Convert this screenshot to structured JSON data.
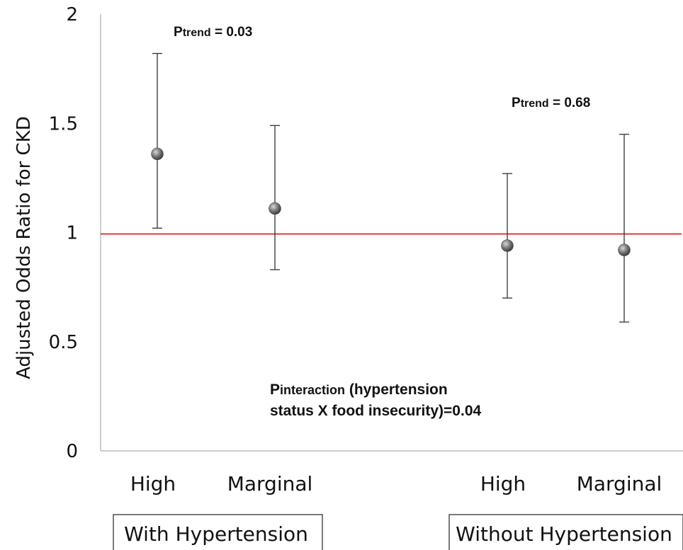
{
  "chart_data": {
    "type": "scatter",
    "ylabel": "Adjusted Odds Ratio for CKD",
    "ylim": [
      0,
      2
    ],
    "yticks": [
      {
        "value": 0,
        "label": "0"
      },
      {
        "value": 0.5,
        "label": "0.5"
      },
      {
        "value": 1,
        "label": "1"
      },
      {
        "value": 1.5,
        "label": "1.5"
      },
      {
        "value": 2,
        "label": "2"
      }
    ],
    "reference_line": {
      "y": 1,
      "color": "#e53935"
    },
    "marker_color": "#6e6e6e",
    "error_bar_color": "#333333",
    "categories": [
      "High",
      "Marginal",
      "High",
      "Marginal"
    ],
    "points": [
      {
        "category": "High",
        "group": "With Hypertension",
        "y": 1.36,
        "lower": 1.02,
        "upper": 1.82
      },
      {
        "category": "Marginal",
        "group": "With Hypertension",
        "y": 1.11,
        "lower": 0.83,
        "upper": 1.49
      },
      {
        "category": "High",
        "group": "Without Hypertension",
        "y": 0.94,
        "lower": 0.7,
        "upper": 1.27
      },
      {
        "category": "Marginal",
        "group": "Without Hypertension",
        "y": 0.92,
        "lower": 0.59,
        "upper": 1.45
      }
    ],
    "groups": [
      "With Hypertension",
      "Without Hypertension"
    ],
    "annotations": [
      {
        "sub_prefix": "P",
        "sub": "trend",
        "text": " = 0.03"
      },
      {
        "sub_prefix": "P",
        "sub": "trend",
        "text": " = 0.68"
      },
      {
        "sub_prefix": "P",
        "sub": "interaction",
        "text": " (hypertension",
        "line2": "status X food insecurity)=0.04"
      }
    ]
  }
}
